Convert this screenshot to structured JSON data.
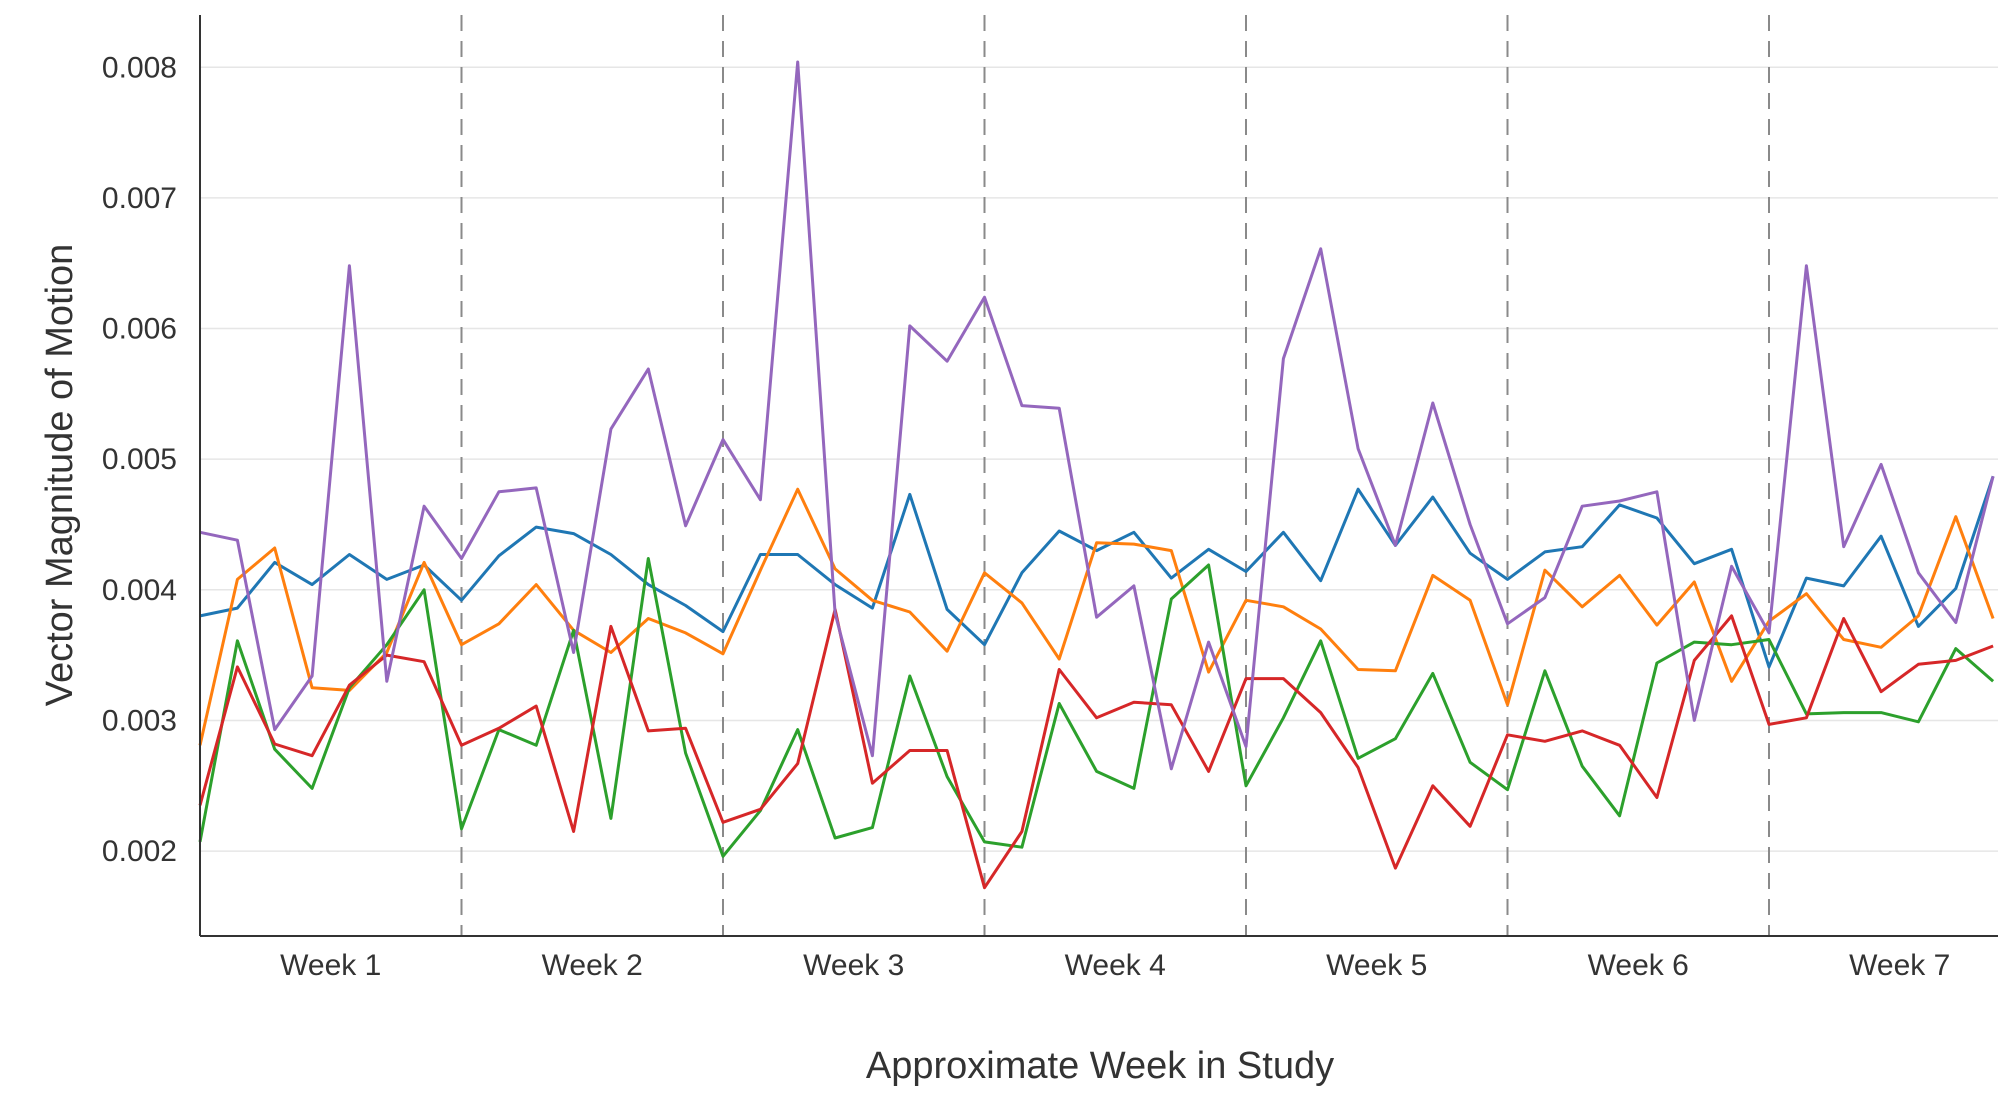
{
  "chart_data": {
    "type": "line",
    "title": "",
    "xlabel": "Approximate Week in Study",
    "ylabel": "Vector Magnitude of Motion",
    "ylim": [
      0.00135,
      0.0084
    ],
    "y_ticks": [
      "0.002",
      "0.003",
      "0.004",
      "0.005",
      "0.006",
      "0.007",
      "0.008"
    ],
    "y_tick_values": [
      0.002,
      0.003,
      0.004,
      0.005,
      0.006,
      0.007,
      0.008
    ],
    "x_ticks": [
      "Week 1",
      "Week 2",
      "Week 3",
      "Week 4",
      "Week 5",
      "Week 6",
      "Week 7"
    ],
    "points_per_week": 7,
    "week_boundaries": true,
    "grid": "horizontal",
    "colors": [
      "#1f77b4",
      "#ff7f0e",
      "#2ca02c",
      "#d62728",
      "#9467bd"
    ],
    "series": [
      {
        "values": [
          0.0038,
          0.00386,
          0.00421,
          0.00404,
          0.00427,
          0.00408,
          0.00419,
          0.00392,
          0.00426,
          0.00448,
          0.00443,
          0.00427,
          0.00404,
          0.00388,
          0.00368,
          0.00427,
          0.00427,
          0.00404,
          0.00386,
          0.00473,
          0.00385,
          0.00358,
          0.00413,
          0.00445,
          0.0043,
          0.00444,
          0.00409,
          0.00431,
          0.00414,
          0.00444,
          0.00407,
          0.00477,
          0.00434,
          0.00471,
          0.00428,
          0.00408,
          0.00429,
          0.00433,
          0.00465,
          0.00455,
          0.0042,
          0.00431,
          0.00341,
          0.00409,
          0.00403,
          0.00441,
          0.00372,
          0.00401,
          0.00487
        ]
      },
      {
        "values": [
          0.00281,
          0.00408,
          0.00432,
          0.00325,
          0.00323,
          0.00352,
          0.00421,
          0.00358,
          0.00374,
          0.00404,
          0.00369,
          0.00352,
          0.00378,
          0.00367,
          0.00351,
          0.00415,
          0.00477,
          0.00416,
          0.00392,
          0.00383,
          0.00353,
          0.00413,
          0.0039,
          0.00347,
          0.00436,
          0.00435,
          0.0043,
          0.00337,
          0.00392,
          0.00387,
          0.0037,
          0.00339,
          0.00338,
          0.00411,
          0.00392,
          0.00312,
          0.00415,
          0.00387,
          0.00411,
          0.00373,
          0.00406,
          0.0033,
          0.00376,
          0.00397,
          0.00362,
          0.00356,
          0.0038,
          0.00456,
          0.00378
        ]
      },
      {
        "values": [
          0.00207,
          0.00361,
          0.00278,
          0.00248,
          0.00325,
          0.00358,
          0.004,
          0.00217,
          0.00293,
          0.00281,
          0.00369,
          0.00225,
          0.00424,
          0.00275,
          0.00196,
          0.00231,
          0.00293,
          0.0021,
          0.00218,
          0.00334,
          0.00257,
          0.00207,
          0.00203,
          0.00313,
          0.00261,
          0.00248,
          0.00393,
          0.00419,
          0.0025,
          0.00302,
          0.00361,
          0.00271,
          0.00286,
          0.00336,
          0.00268,
          0.00247,
          0.00338,
          0.00265,
          0.00227,
          0.00344,
          0.0036,
          0.00358,
          0.00362,
          0.00305,
          0.00306,
          0.00306,
          0.00299,
          0.00355,
          0.0033
        ]
      },
      {
        "values": [
          0.00235,
          0.00341,
          0.00282,
          0.00273,
          0.00327,
          0.0035,
          0.00345,
          0.00281,
          0.00294,
          0.00311,
          0.00215,
          0.00372,
          0.00292,
          0.00294,
          0.00222,
          0.00232,
          0.00267,
          0.00385,
          0.00252,
          0.00277,
          0.00277,
          0.00172,
          0.00215,
          0.00339,
          0.00302,
          0.00314,
          0.00312,
          0.00261,
          0.00332,
          0.00332,
          0.00306,
          0.00264,
          0.00187,
          0.0025,
          0.00219,
          0.00289,
          0.00284,
          0.00292,
          0.00281,
          0.00241,
          0.00346,
          0.0038,
          0.00297,
          0.00302,
          0.00378,
          0.00322,
          0.00343,
          0.00346,
          0.00357
        ]
      },
      {
        "values": [
          0.00444,
          0.00438,
          0.00293,
          0.00334,
          0.00648,
          0.0033,
          0.00464,
          0.00424,
          0.00475,
          0.00478,
          0.00352,
          0.00523,
          0.00569,
          0.00449,
          0.00515,
          0.00469,
          0.00804,
          0.00382,
          0.00273,
          0.00602,
          0.00575,
          0.00624,
          0.00541,
          0.00539,
          0.00379,
          0.00403,
          0.00263,
          0.0036,
          0.0028,
          0.00577,
          0.00661,
          0.00508,
          0.00434,
          0.00543,
          0.0045,
          0.00374,
          0.00394,
          0.00464,
          0.00468,
          0.00475,
          0.003,
          0.00418,
          0.00367,
          0.00648,
          0.00433,
          0.00496,
          0.00413,
          0.00375,
          0.00487
        ]
      }
    ]
  }
}
